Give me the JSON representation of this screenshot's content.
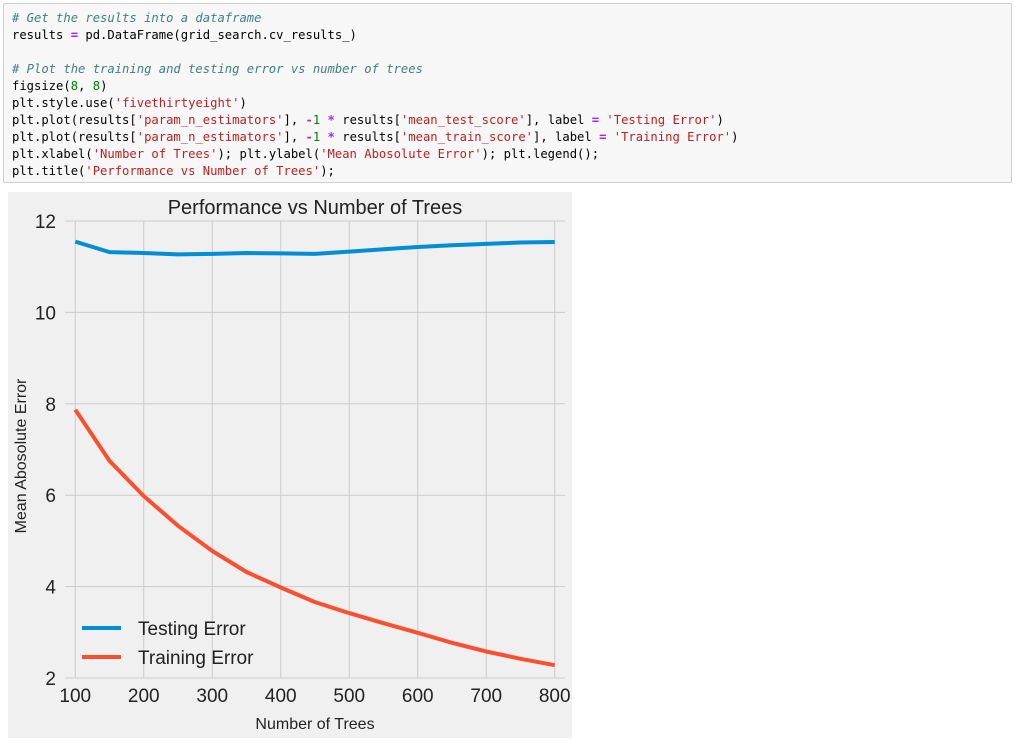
{
  "code": {
    "lines": [
      [
        {
          "t": "# Get the results into a dataframe",
          "c": "cm"
        }
      ],
      [
        {
          "t": "results ",
          "c": ""
        },
        {
          "t": "=",
          "c": "op"
        },
        {
          "t": " pd.DataFrame(grid_search.cv_results_)",
          "c": ""
        }
      ],
      [],
      [
        {
          "t": "# Plot the training and testing error vs number of trees",
          "c": "cm"
        }
      ],
      [
        {
          "t": "figsize(",
          "c": ""
        },
        {
          "t": "8",
          "c": "nu"
        },
        {
          "t": ", ",
          "c": ""
        },
        {
          "t": "8",
          "c": "nu"
        },
        {
          "t": ")",
          "c": ""
        }
      ],
      [
        {
          "t": "plt.style.use(",
          "c": ""
        },
        {
          "t": "'fivethirtyeight'",
          "c": "st"
        },
        {
          "t": ")",
          "c": ""
        }
      ],
      [
        {
          "t": "plt.plot(results[",
          "c": ""
        },
        {
          "t": "'param_n_estimators'",
          "c": "st"
        },
        {
          "t": "], ",
          "c": ""
        },
        {
          "t": "-",
          "c": "op"
        },
        {
          "t": "1",
          "c": "nu"
        },
        {
          "t": " ",
          "c": ""
        },
        {
          "t": "*",
          "c": "op"
        },
        {
          "t": " results[",
          "c": ""
        },
        {
          "t": "'mean_test_score'",
          "c": "st"
        },
        {
          "t": "], label ",
          "c": ""
        },
        {
          "t": "=",
          "c": "op"
        },
        {
          "t": " ",
          "c": ""
        },
        {
          "t": "'Testing Error'",
          "c": "st"
        },
        {
          "t": ")",
          "c": ""
        }
      ],
      [
        {
          "t": "plt.plot(results[",
          "c": ""
        },
        {
          "t": "'param_n_estimators'",
          "c": "st"
        },
        {
          "t": "], ",
          "c": ""
        },
        {
          "t": "-",
          "c": "op"
        },
        {
          "t": "1",
          "c": "nu"
        },
        {
          "t": " ",
          "c": ""
        },
        {
          "t": "*",
          "c": "op"
        },
        {
          "t": " results[",
          "c": ""
        },
        {
          "t": "'mean_train_score'",
          "c": "st"
        },
        {
          "t": "], label ",
          "c": ""
        },
        {
          "t": "=",
          "c": "op"
        },
        {
          "t": " ",
          "c": ""
        },
        {
          "t": "'Training Error'",
          "c": "st"
        },
        {
          "t": ")",
          "c": ""
        }
      ],
      [
        {
          "t": "plt.xlabel(",
          "c": ""
        },
        {
          "t": "'Number of Trees'",
          "c": "st"
        },
        {
          "t": "); plt.ylabel(",
          "c": ""
        },
        {
          "t": "'Mean Abosolute Error'",
          "c": "st"
        },
        {
          "t": "); plt.legend();",
          "c": ""
        }
      ],
      [
        {
          "t": "plt.title(",
          "c": ""
        },
        {
          "t": "'Performance vs Number of Trees'",
          "c": "st"
        },
        {
          "t": ");",
          "c": ""
        }
      ]
    ]
  },
  "chart_data": {
    "type": "line",
    "title": "Performance vs Number of Trees",
    "xlabel": "Number of Trees",
    "ylabel": "Mean Abosolute Error",
    "xlim": [
      85,
      815
    ],
    "ylim": [
      2,
      12
    ],
    "xticks": [
      100,
      200,
      300,
      400,
      500,
      600,
      700,
      800
    ],
    "yticks": [
      2,
      4,
      6,
      8,
      10,
      12
    ],
    "grid": true,
    "legend_position": "lower-left",
    "background": "#f0f0f0",
    "x": [
      100,
      150,
      200,
      250,
      300,
      350,
      400,
      450,
      500,
      550,
      600,
      650,
      700,
      750,
      800
    ],
    "series": [
      {
        "name": "Testing Error",
        "color": "#008fd5",
        "values": [
          11.55,
          11.32,
          11.3,
          11.27,
          11.28,
          11.3,
          11.29,
          11.28,
          11.33,
          11.38,
          11.43,
          11.47,
          11.5,
          11.53,
          11.54
        ]
      },
      {
        "name": "Training Error",
        "color": "#fc4f30",
        "values": [
          7.87,
          6.75,
          5.98,
          5.33,
          4.78,
          4.32,
          3.98,
          3.66,
          3.42,
          3.2,
          2.99,
          2.77,
          2.58,
          2.42,
          2.28
        ]
      }
    ]
  }
}
